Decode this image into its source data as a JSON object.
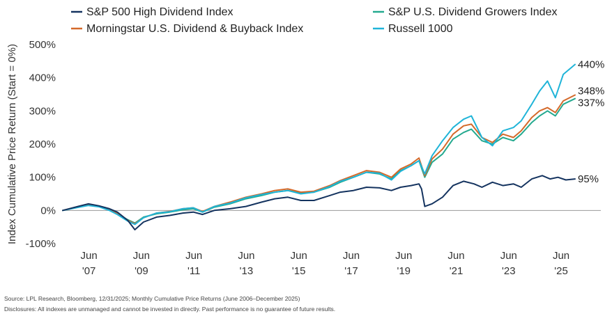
{
  "footnotes": {
    "source": "Source: LPL Research, Bloomberg, 12/31/2025; Monthly Cumulative Price Returns (June 2006–December 2025)",
    "disclosure": "Disclosures: All indexes are unmanaged and cannot be invested in directly. Past performance is no guarantee of future results."
  },
  "chart_data": {
    "type": "line",
    "title": "",
    "xlabel": "",
    "ylabel": "Index Cumulative Price Return (Start = 0%)",
    "ylim": [
      -100,
      500
    ],
    "xlim": [
      2006.42,
      2025.95
    ],
    "y_ticks": [
      -100,
      0,
      100,
      200,
      300,
      400,
      500
    ],
    "y_tick_labels": [
      "-100%",
      "0%",
      "100%",
      "200%",
      "300%",
      "400%",
      "500%"
    ],
    "x_ticks": [
      {
        "value": 2007.42,
        "line1": "Jun",
        "line2": "'07"
      },
      {
        "value": 2009.42,
        "line1": "Jun",
        "line2": "'09"
      },
      {
        "value": 2011.42,
        "line1": "Jun",
        "line2": "'11"
      },
      {
        "value": 2013.42,
        "line1": "Jun",
        "line2": "'13"
      },
      {
        "value": 2015.42,
        "line1": "Jun",
        "line2": "'15"
      },
      {
        "value": 2017.42,
        "line1": "Jun",
        "line2": "'17"
      },
      {
        "value": 2019.42,
        "line1": "Jun",
        "line2": "'19"
      },
      {
        "value": 2021.42,
        "line1": "Jun",
        "line2": "'21"
      },
      {
        "value": 2023.42,
        "line1": "Jun",
        "line2": "'23"
      },
      {
        "value": 2025.42,
        "line1": "Jun",
        "line2": "'25"
      }
    ],
    "grid": false,
    "legend_position": "top",
    "series": [
      {
        "name": "S&P 500 High Dividend Index",
        "color": "#14335f",
        "end_label": "95%",
        "x": [
          2006.42,
          2007.0,
          2007.4,
          2007.8,
          2008.2,
          2008.5,
          2008.9,
          2009.17,
          2009.5,
          2010.0,
          2010.5,
          2011.0,
          2011.4,
          2011.75,
          2012.2,
          2012.8,
          2013.4,
          2014.0,
          2014.5,
          2015.0,
          2015.5,
          2016.0,
          2016.6,
          2017.0,
          2017.5,
          2018.0,
          2018.5,
          2018.95,
          2019.3,
          2019.7,
          2020.0,
          2020.1,
          2020.22,
          2020.5,
          2020.9,
          2021.3,
          2021.7,
          2022.1,
          2022.4,
          2022.8,
          2023.2,
          2023.6,
          2023.9,
          2024.3,
          2024.7,
          2025.0,
          2025.3,
          2025.6,
          2025.95
        ],
        "y": [
          0,
          12,
          20,
          14,
          5,
          -5,
          -30,
          -58,
          -35,
          -20,
          -15,
          -8,
          -5,
          -12,
          0,
          5,
          12,
          25,
          35,
          40,
          30,
          30,
          45,
          55,
          60,
          70,
          68,
          60,
          70,
          75,
          80,
          65,
          12,
          20,
          40,
          75,
          88,
          80,
          70,
          85,
          75,
          80,
          70,
          95,
          105,
          95,
          100,
          92,
          95
        ]
      },
      {
        "name": "S&P U.S. Dividend Growers Index",
        "color": "#24a98f",
        "end_label": "337%",
        "x": [
          2006.42,
          2007.0,
          2007.4,
          2007.8,
          2008.2,
          2008.5,
          2008.9,
          2009.17,
          2009.5,
          2010.0,
          2010.5,
          2011.0,
          2011.4,
          2011.75,
          2012.2,
          2012.8,
          2013.4,
          2014.0,
          2014.5,
          2015.0,
          2015.5,
          2016.0,
          2016.6,
          2017.0,
          2017.5,
          2018.0,
          2018.5,
          2018.95,
          2019.3,
          2019.7,
          2020.0,
          2020.22,
          2020.5,
          2020.9,
          2021.3,
          2021.7,
          2022.0,
          2022.4,
          2022.8,
          2023.2,
          2023.6,
          2023.9,
          2024.3,
          2024.6,
          2024.9,
          2025.2,
          2025.5,
          2025.95
        ],
        "y": [
          0,
          10,
          16,
          12,
          3,
          -10,
          -28,
          -38,
          -20,
          -10,
          -5,
          2,
          5,
          -5,
          10,
          20,
          35,
          45,
          55,
          60,
          52,
          55,
          70,
          85,
          100,
          115,
          110,
          95,
          120,
          135,
          150,
          100,
          145,
          170,
          215,
          235,
          245,
          210,
          200,
          220,
          210,
          230,
          265,
          285,
          300,
          285,
          320,
          337
        ]
      },
      {
        "name": "Morningstar U.S. Dividend & Buyback Index",
        "color": "#d4692a",
        "end_label": "348%",
        "x": [
          2006.42,
          2007.0,
          2007.4,
          2007.8,
          2008.2,
          2008.5,
          2008.9,
          2009.17,
          2009.5,
          2010.0,
          2010.5,
          2011.0,
          2011.4,
          2011.75,
          2012.2,
          2012.8,
          2013.4,
          2014.0,
          2014.5,
          2015.0,
          2015.5,
          2016.0,
          2016.6,
          2017.0,
          2017.5,
          2018.0,
          2018.5,
          2018.95,
          2019.3,
          2019.7,
          2020.0,
          2020.22,
          2020.5,
          2020.9,
          2021.3,
          2021.7,
          2022.0,
          2022.4,
          2022.8,
          2023.2,
          2023.6,
          2023.9,
          2024.3,
          2024.6,
          2024.9,
          2025.2,
          2025.5,
          2025.95
        ],
        "y": [
          0,
          11,
          18,
          13,
          4,
          -8,
          -30,
          -40,
          -22,
          -8,
          -3,
          5,
          8,
          -3,
          12,
          25,
          40,
          50,
          60,
          65,
          55,
          58,
          75,
          90,
          105,
          120,
          115,
          100,
          125,
          140,
          158,
          105,
          155,
          185,
          230,
          255,
          260,
          220,
          205,
          230,
          220,
          240,
          280,
          300,
          310,
          295,
          330,
          348
        ]
      },
      {
        "name": "Russell 1000",
        "color": "#1fb4d8",
        "end_label": "440%",
        "x": [
          2006.42,
          2007.0,
          2007.4,
          2007.8,
          2008.2,
          2008.5,
          2008.9,
          2009.17,
          2009.5,
          2010.0,
          2010.5,
          2011.0,
          2011.4,
          2011.75,
          2012.2,
          2012.8,
          2013.4,
          2014.0,
          2014.5,
          2015.0,
          2015.5,
          2016.0,
          2016.6,
          2017.0,
          2017.5,
          2018.0,
          2018.5,
          2018.95,
          2019.3,
          2019.7,
          2020.0,
          2020.22,
          2020.5,
          2020.9,
          2021.3,
          2021.7,
          2022.0,
          2022.4,
          2022.8,
          2023.2,
          2023.6,
          2023.9,
          2024.3,
          2024.6,
          2024.9,
          2025.2,
          2025.5,
          2025.95
        ],
        "y": [
          0,
          9,
          15,
          11,
          0,
          -12,
          -32,
          -42,
          -22,
          -8,
          -4,
          5,
          8,
          -5,
          12,
          22,
          38,
          48,
          55,
          60,
          50,
          55,
          72,
          88,
          100,
          115,
          112,
          92,
          118,
          135,
          150,
          110,
          165,
          210,
          250,
          275,
          285,
          220,
          195,
          240,
          250,
          270,
          320,
          360,
          390,
          340,
          410,
          440
        ]
      }
    ]
  }
}
